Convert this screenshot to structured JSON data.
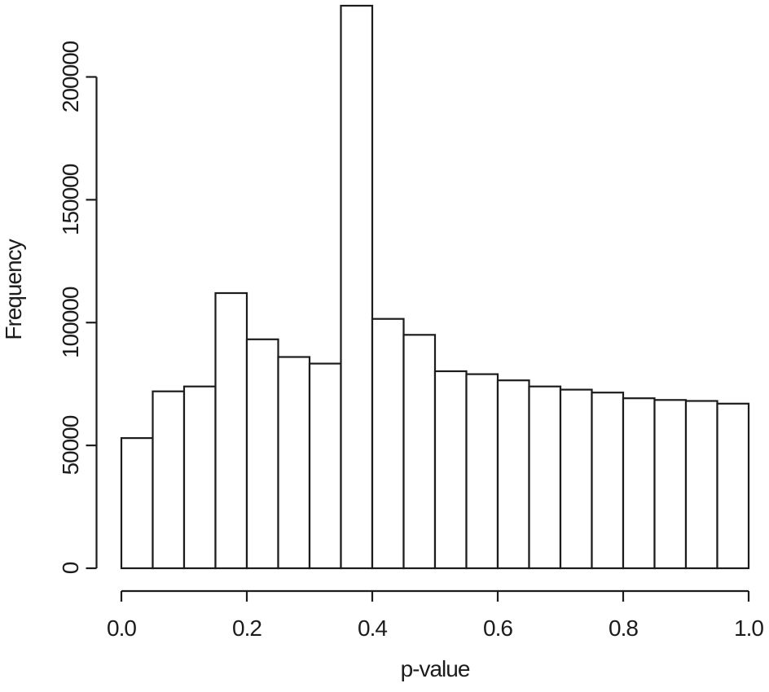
{
  "figure": {
    "background": "#ffffff",
    "line_color": "#1c1c1c"
  },
  "chart_data": {
    "type": "bar",
    "subtype": "histogram",
    "title": "",
    "xlabel": "p-value",
    "ylabel": "Frequency",
    "xlim": [
      0,
      1
    ],
    "ylim": [
      0,
      230000
    ],
    "bin_start": 0,
    "bin_width": 0.05,
    "bins": [
      {
        "range": [
          0.0,
          0.05
        ],
        "frequency": 53000
      },
      {
        "range": [
          0.05,
          0.1
        ],
        "frequency": 72000
      },
      {
        "range": [
          0.1,
          0.15
        ],
        "frequency": 74000
      },
      {
        "range": [
          0.15,
          0.2
        ],
        "frequency": 112000
      },
      {
        "range": [
          0.2,
          0.25
        ],
        "frequency": 93200
      },
      {
        "range": [
          0.25,
          0.3
        ],
        "frequency": 86000
      },
      {
        "range": [
          0.3,
          0.35
        ],
        "frequency": 83300
      },
      {
        "range": [
          0.35,
          0.4
        ],
        "frequency": 229000
      },
      {
        "range": [
          0.4,
          0.45
        ],
        "frequency": 101500
      },
      {
        "range": [
          0.45,
          0.5
        ],
        "frequency": 95000
      },
      {
        "range": [
          0.5,
          0.55
        ],
        "frequency": 80200
      },
      {
        "range": [
          0.55,
          0.6
        ],
        "frequency": 79000
      },
      {
        "range": [
          0.6,
          0.65
        ],
        "frequency": 76500
      },
      {
        "range": [
          0.65,
          0.7
        ],
        "frequency": 74000
      },
      {
        "range": [
          0.7,
          0.75
        ],
        "frequency": 72700
      },
      {
        "range": [
          0.75,
          0.8
        ],
        "frequency": 71500
      },
      {
        "range": [
          0.8,
          0.85
        ],
        "frequency": 69200
      },
      {
        "range": [
          0.85,
          0.9
        ],
        "frequency": 68500
      },
      {
        "range": [
          0.9,
          0.95
        ],
        "frequency": 68100
      },
      {
        "range": [
          0.95,
          1.0
        ],
        "frequency": 67000
      }
    ],
    "values": [
      53000,
      72000,
      74000,
      112000,
      93200,
      86000,
      83300,
      229000,
      101500,
      95000,
      80200,
      79000,
      76500,
      74000,
      72700,
      71500,
      69200,
      68500,
      68100,
      67000
    ],
    "x_ticks": [
      "0.0",
      "0.2",
      "0.4",
      "0.6",
      "0.8",
      "1.0"
    ],
    "x_tick_values": [
      0,
      0.2,
      0.4,
      0.6,
      0.8,
      1.0
    ],
    "y_ticks": [
      "0",
      "50000",
      "100000",
      "150000",
      "200000"
    ],
    "y_tick_values": [
      0,
      50000,
      100000,
      150000,
      200000
    ],
    "grid": false,
    "legend": "none",
    "bar_fill": "#ffffff",
    "bar_stroke": "#1c1c1c"
  }
}
